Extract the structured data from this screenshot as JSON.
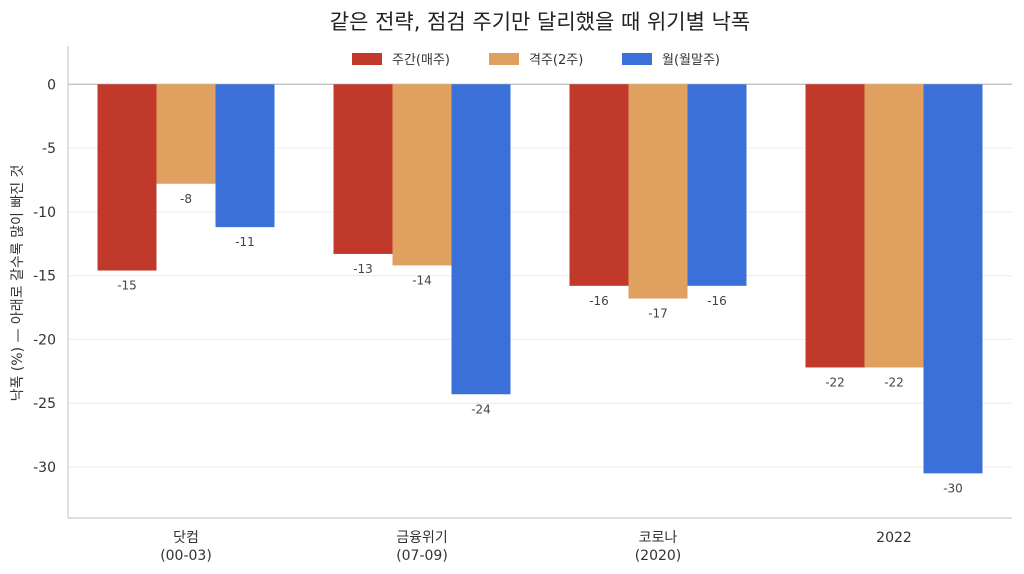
{
  "chart_data": {
    "type": "bar",
    "title": "같은 전략, 점검 주기만 달리했을 때 위기별 낙폭",
    "ylabel": "낙폭 (%)  — 아래로 갈수록 많이 빠진 것",
    "xlabel": "",
    "categories": [
      [
        "닷컴",
        "(00-03)"
      ],
      [
        "금융위기",
        "(07-09)"
      ],
      [
        "코로나",
        "(2020)"
      ],
      [
        "2022"
      ]
    ],
    "series": [
      {
        "name": "주간(매주)",
        "color": "#c0392b",
        "values": [
          -14.6,
          -13.3,
          -15.8,
          -22.2
        ],
        "labels": [
          "-15",
          "-13",
          "-16",
          "-22"
        ]
      },
      {
        "name": "격주(2주)",
        "color": "#e0a060",
        "values": [
          -7.8,
          -14.2,
          -16.8,
          -22.2
        ],
        "labels": [
          "-8",
          "-14",
          "-17",
          "-22"
        ]
      },
      {
        "name": "월(월말주)",
        "color": "#3a70d8",
        "values": [
          -11.2,
          -24.3,
          -15.8,
          -30.5
        ],
        "labels": [
          "-11",
          "-24",
          "-16",
          "-30"
        ]
      }
    ],
    "ylim": [
      -34,
      3
    ],
    "yticks": [
      0,
      -5,
      -10,
      -15,
      -20,
      -25,
      -30
    ],
    "ytick_labels": [
      "0",
      "-5",
      "-10",
      "-15",
      "-20",
      "-25",
      "-30"
    ],
    "grid": "horizontal",
    "legend_position": "top-center"
  }
}
